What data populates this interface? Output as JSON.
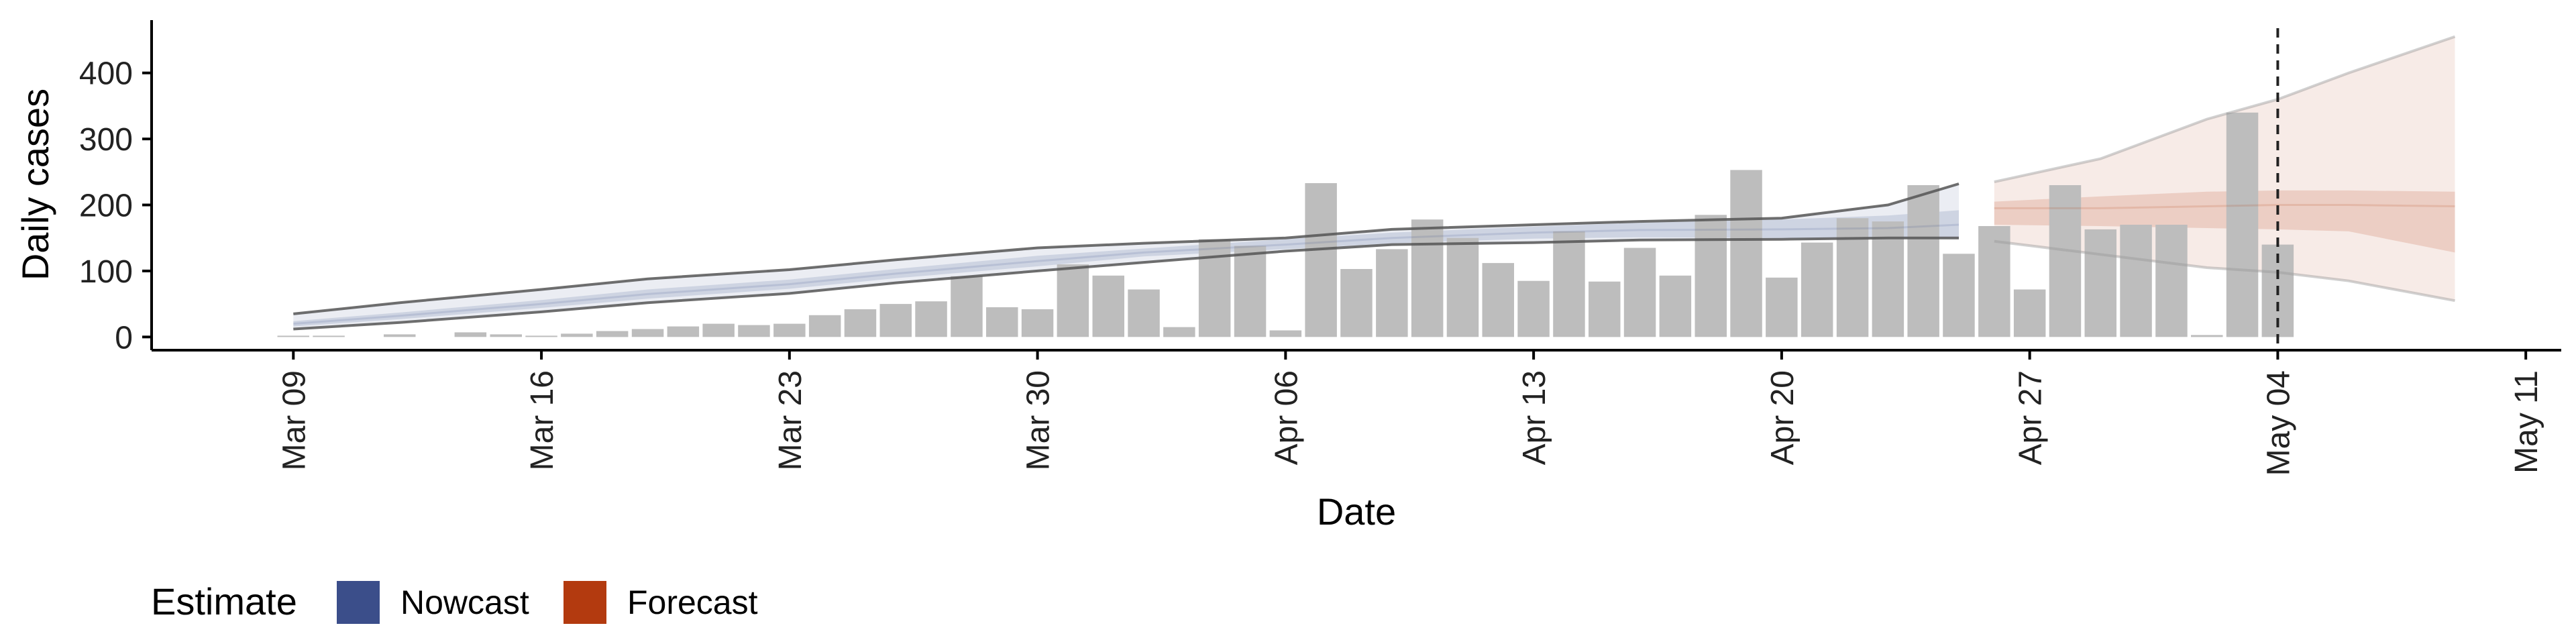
{
  "chart_data": {
    "type": "bar",
    "xlabel": "Date",
    "ylabel": "Daily cases",
    "ylim": [
      -20,
      480
    ],
    "yticks": [
      0,
      100,
      200,
      300,
      400
    ],
    "x_start": "2020-03-05",
    "x_end": "2020-05-12",
    "xticks": [
      {
        "date": "2020-03-09",
        "label": "Mar 09"
      },
      {
        "date": "2020-03-16",
        "label": "Mar 16"
      },
      {
        "date": "2020-03-23",
        "label": "Mar 23"
      },
      {
        "date": "2020-03-30",
        "label": "Mar 30"
      },
      {
        "date": "2020-04-06",
        "label": "Apr 06"
      },
      {
        "date": "2020-04-13",
        "label": "Apr 13"
      },
      {
        "date": "2020-04-20",
        "label": "Apr 20"
      },
      {
        "date": "2020-04-27",
        "label": "Apr 27"
      },
      {
        "date": "2020-05-04",
        "label": "May 04"
      },
      {
        "date": "2020-05-11",
        "label": "May 11"
      }
    ],
    "bars": {
      "color": "#bdbdbd",
      "dates": [
        "2020-03-09",
        "2020-03-10",
        "2020-03-11",
        "2020-03-12",
        "2020-03-13",
        "2020-03-14",
        "2020-03-15",
        "2020-03-16",
        "2020-03-17",
        "2020-03-18",
        "2020-03-19",
        "2020-03-20",
        "2020-03-21",
        "2020-03-22",
        "2020-03-23",
        "2020-03-24",
        "2020-03-25",
        "2020-03-26",
        "2020-03-27",
        "2020-03-28",
        "2020-03-29",
        "2020-03-30",
        "2020-03-31",
        "2020-04-01",
        "2020-04-02",
        "2020-04-03",
        "2020-04-04",
        "2020-04-05",
        "2020-04-06",
        "2020-04-07",
        "2020-04-08",
        "2020-04-09",
        "2020-04-10",
        "2020-04-11",
        "2020-04-12",
        "2020-04-13",
        "2020-04-14",
        "2020-04-15",
        "2020-04-16",
        "2020-04-17",
        "2020-04-18",
        "2020-04-19",
        "2020-04-20",
        "2020-04-21",
        "2020-04-22",
        "2020-04-23",
        "2020-04-24",
        "2020-04-25",
        "2020-04-26",
        "2020-04-27",
        "2020-04-28",
        "2020-04-29",
        "2020-04-30",
        "2020-05-01",
        "2020-05-02",
        "2020-05-03",
        "2020-05-04"
      ],
      "values": [
        2,
        2,
        0,
        4,
        0,
        7,
        4,
        2,
        5,
        9,
        12,
        16,
        20,
        18,
        20,
        33,
        42,
        50,
        54,
        92,
        45,
        42,
        110,
        93,
        72,
        15,
        148,
        138,
        10,
        233,
        103,
        133,
        178,
        150,
        112,
        85,
        160,
        84,
        135,
        93,
        185,
        253,
        90,
        143,
        180,
        175,
        230,
        126,
        168,
        72,
        230,
        163,
        170,
        170,
        3,
        340,
        140
      ]
    },
    "series": [
      {
        "name": "Nowcast",
        "color": "#3b4e8a",
        "dates": [
          "2020-03-09",
          "2020-03-12",
          "2020-03-16",
          "2020-03-19",
          "2020-03-23",
          "2020-03-26",
          "2020-03-30",
          "2020-04-02",
          "2020-04-06",
          "2020-04-09",
          "2020-04-13",
          "2020-04-16",
          "2020-04-20",
          "2020-04-23",
          "2020-04-25"
        ],
        "median": [
          20,
          32,
          50,
          65,
          80,
          96,
          115,
          128,
          140,
          150,
          158,
          162,
          163,
          165,
          170
        ],
        "lower_50": [
          16,
          27,
          44,
          58,
          73,
          89,
          107,
          122,
          133,
          142,
          149,
          151,
          150,
          149,
          148
        ],
        "upper_50": [
          24,
          37,
          56,
          72,
          87,
          103,
          123,
          134,
          148,
          158,
          167,
          173,
          178,
          184,
          192
        ],
        "lower_90": [
          12,
          22,
          38,
          52,
          66,
          82,
          100,
          113,
          130,
          140,
          143,
          147,
          148,
          150,
          150
        ],
        "upper_90": [
          35,
          52,
          72,
          88,
          102,
          117,
          135,
          142,
          150,
          163,
          170,
          175,
          180,
          200,
          232
        ]
      },
      {
        "name": "Forecast",
        "color": "#b33a0f",
        "dates": [
          "2020-04-26",
          "2020-04-29",
          "2020-05-02",
          "2020-05-04",
          "2020-05-06",
          "2020-05-09"
        ],
        "median": [
          195,
          195,
          198,
          200,
          200,
          198
        ],
        "lower_50": [
          170,
          168,
          165,
          163,
          160,
          128
        ],
        "upper_50": [
          205,
          213,
          220,
          222,
          222,
          220
        ],
        "lower_90": [
          145,
          125,
          105,
          98,
          85,
          55
        ],
        "upper_90": [
          235,
          270,
          330,
          360,
          400,
          455
        ]
      }
    ],
    "vline_date": "2020-05-04",
    "legend": {
      "title": "Estimate",
      "position": "bottom-left",
      "items": [
        {
          "label": "Nowcast",
          "color": "#3b4e8a"
        },
        {
          "label": "Forecast",
          "color": "#b33a0f"
        }
      ]
    }
  }
}
